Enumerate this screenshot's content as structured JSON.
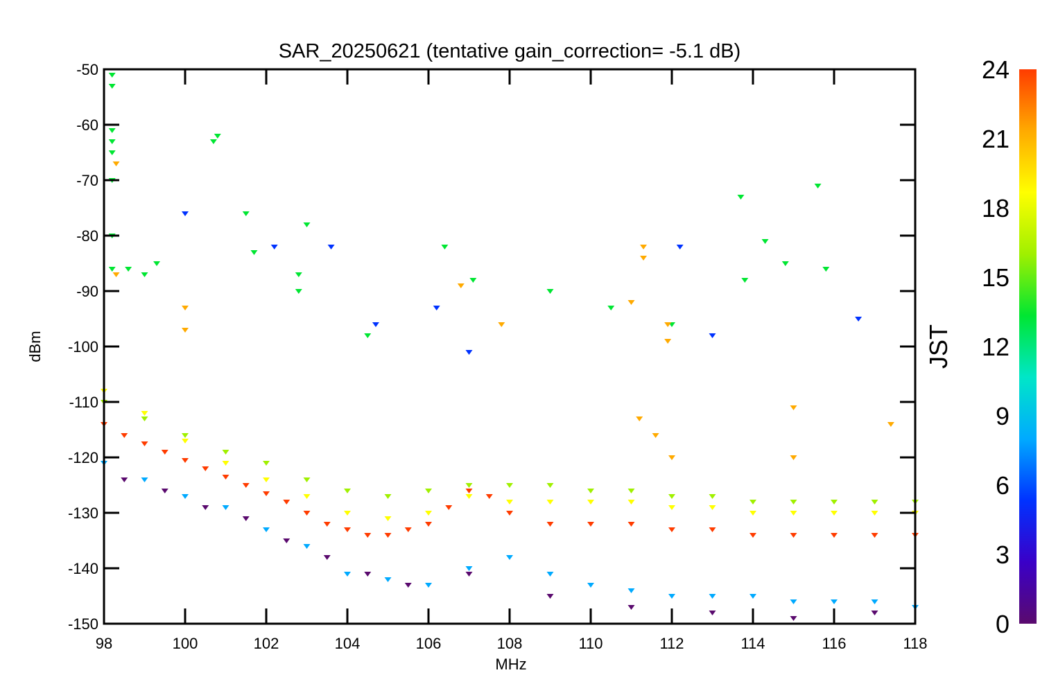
{
  "chart_data": {
    "type": "scatter",
    "title": "SAR_20250621 (tentative gain_correction= -5.1 dB)",
    "xlabel": "MHz",
    "ylabel": "dBm",
    "xlim": [
      98,
      118
    ],
    "ylim": [
      -150,
      -50
    ],
    "x_ticks": [
      "98",
      "100",
      "102",
      "104",
      "106",
      "108",
      "110",
      "112",
      "114",
      "116",
      "118"
    ],
    "y_ticks": [
      "-50",
      "-60",
      "-70",
      "-80",
      "-90",
      "-100",
      "-110",
      "-120",
      "-130",
      "-140",
      "-150"
    ],
    "colorbar": {
      "label": "JST",
      "range": [
        0,
        24
      ],
      "ticks": [
        "0",
        "3",
        "6",
        "9",
        "12",
        "15",
        "18",
        "21",
        "24"
      ],
      "colors": [
        "#5a0a6e",
        "#3a00c8",
        "#0032ff",
        "#00aaff",
        "#00e6c8",
        "#00e632",
        "#a0f000",
        "#ffff00",
        "#ffaa00",
        "#ff3c00"
      ]
    },
    "grid": false,
    "series": [
      {
        "color_hour": 23,
        "points": [
          [
            98,
            -114
          ],
          [
            98.5,
            -116
          ],
          [
            99,
            -117.5
          ],
          [
            99.5,
            -119
          ],
          [
            100,
            -120.5
          ],
          [
            100.5,
            -122
          ],
          [
            101,
            -123.5
          ],
          [
            101.5,
            -125
          ],
          [
            102,
            -126.5
          ],
          [
            102.5,
            -128
          ],
          [
            103,
            -130
          ],
          [
            103.5,
            -132
          ],
          [
            104,
            -133
          ],
          [
            104.5,
            -134
          ],
          [
            105,
            -134
          ],
          [
            105.5,
            -133
          ],
          [
            106,
            -132
          ],
          [
            106.5,
            -129
          ],
          [
            107,
            -126
          ],
          [
            107.5,
            -127
          ],
          [
            108,
            -130
          ],
          [
            109,
            -132
          ],
          [
            110,
            -132
          ],
          [
            111,
            -132
          ],
          [
            112,
            -133
          ],
          [
            113,
            -133
          ],
          [
            114,
            -134
          ],
          [
            115,
            -134
          ],
          [
            116,
            -134
          ],
          [
            117,
            -134
          ],
          [
            118,
            -134
          ]
        ]
      },
      {
        "color_hour": 19,
        "points": [
          [
            98,
            -108
          ],
          [
            99,
            -112
          ],
          [
            100,
            -117
          ],
          [
            101,
            -121
          ],
          [
            102,
            -124
          ],
          [
            103,
            -127
          ],
          [
            104,
            -130
          ],
          [
            105,
            -131
          ],
          [
            106,
            -130
          ],
          [
            107,
            -127
          ],
          [
            108,
            -128
          ],
          [
            109,
            -128
          ],
          [
            110,
            -128
          ],
          [
            111,
            -128
          ],
          [
            112,
            -129
          ],
          [
            113,
            -129
          ],
          [
            114,
            -130
          ],
          [
            115,
            -130
          ],
          [
            116,
            -130
          ],
          [
            117,
            -130
          ],
          [
            118,
            -130
          ]
        ]
      },
      {
        "color_hour": 16,
        "points": [
          [
            98,
            -110
          ],
          [
            99,
            -113
          ],
          [
            100,
            -116
          ],
          [
            101,
            -119
          ],
          [
            102,
            -121
          ],
          [
            103,
            -124
          ],
          [
            104,
            -126
          ],
          [
            105,
            -127
          ],
          [
            106,
            -126
          ],
          [
            107,
            -125
          ],
          [
            108,
            -125
          ],
          [
            109,
            -125
          ],
          [
            110,
            -126
          ],
          [
            111,
            -126
          ],
          [
            112,
            -127
          ],
          [
            113,
            -127
          ],
          [
            114,
            -128
          ],
          [
            115,
            -128
          ],
          [
            116,
            -128
          ],
          [
            117,
            -128
          ],
          [
            118,
            -128
          ]
        ]
      },
      {
        "color_hour": 8,
        "points": [
          [
            98,
            -121
          ],
          [
            99,
            -124
          ],
          [
            100,
            -127
          ],
          [
            101,
            -129
          ],
          [
            102,
            -133
          ],
          [
            103,
            -136
          ],
          [
            104,
            -141
          ],
          [
            105,
            -142
          ],
          [
            106,
            -143
          ],
          [
            107,
            -140
          ],
          [
            108,
            -138
          ],
          [
            109,
            -141
          ],
          [
            110,
            -143
          ],
          [
            111,
            -144
          ],
          [
            112,
            -145
          ],
          [
            113,
            -145
          ],
          [
            114,
            -145
          ],
          [
            115,
            -146
          ],
          [
            116,
            -146
          ],
          [
            117,
            -146
          ],
          [
            118,
            -147
          ]
        ]
      },
      {
        "color_hour": 1,
        "points": [
          [
            98.5,
            -124
          ],
          [
            99.5,
            -126
          ],
          [
            100.5,
            -129
          ],
          [
            101.5,
            -131
          ],
          [
            102.5,
            -135
          ],
          [
            103.5,
            -138
          ],
          [
            104.5,
            -141
          ],
          [
            105.5,
            -143
          ],
          [
            107,
            -141
          ],
          [
            109,
            -145
          ],
          [
            111,
            -147
          ],
          [
            113,
            -148
          ],
          [
            115,
            -149
          ],
          [
            117,
            -148
          ]
        ]
      },
      {
        "color_hour": 14,
        "points": [
          [
            98.2,
            -51
          ],
          [
            98.2,
            -53
          ],
          [
            98.2,
            -61
          ],
          [
            98.2,
            -63
          ],
          [
            98.2,
            -65
          ],
          [
            98.2,
            -70
          ],
          [
            98.2,
            -80
          ],
          [
            98.2,
            -86
          ],
          [
            98.6,
            -86
          ],
          [
            99,
            -87
          ],
          [
            99.3,
            -85
          ],
          [
            100.7,
            -63
          ],
          [
            100.8,
            -62
          ],
          [
            101.5,
            -76
          ],
          [
            101.7,
            -83
          ],
          [
            102.8,
            -87
          ],
          [
            102.8,
            -90
          ],
          [
            103,
            -78
          ],
          [
            104.5,
            -98
          ],
          [
            106.4,
            -82
          ],
          [
            107.1,
            -88
          ],
          [
            109,
            -90
          ],
          [
            110.5,
            -93
          ],
          [
            112,
            -96
          ],
          [
            113.7,
            -73
          ],
          [
            114.3,
            -81
          ],
          [
            114.8,
            -85
          ],
          [
            115.6,
            -71
          ],
          [
            115.8,
            -86
          ],
          [
            113.8,
            -88
          ]
        ]
      },
      {
        "color_hour": 5,
        "points": [
          [
            100,
            -76
          ],
          [
            102.2,
            -82
          ],
          [
            103.6,
            -82
          ],
          [
            104.7,
            -96
          ],
          [
            106.2,
            -93
          ],
          [
            107,
            -101
          ],
          [
            112.2,
            -82
          ],
          [
            113,
            -98
          ],
          [
            116.6,
            -95
          ]
        ]
      },
      {
        "color_hour": 22,
        "points": [
          [
            98.3,
            -67
          ],
          [
            98.3,
            -87
          ],
          [
            100,
            -93
          ],
          [
            100,
            -97
          ],
          [
            106.8,
            -89
          ],
          [
            107.8,
            -96
          ],
          [
            111,
            -92
          ],
          [
            111.3,
            -82
          ],
          [
            111.3,
            -84
          ],
          [
            111.9,
            -96
          ],
          [
            111.9,
            -99
          ],
          [
            111.2,
            -113
          ],
          [
            111.6,
            -116
          ],
          [
            112,
            -120
          ],
          [
            115,
            -111
          ],
          [
            115,
            -120
          ],
          [
            117.4,
            -114
          ]
        ]
      }
    ]
  }
}
